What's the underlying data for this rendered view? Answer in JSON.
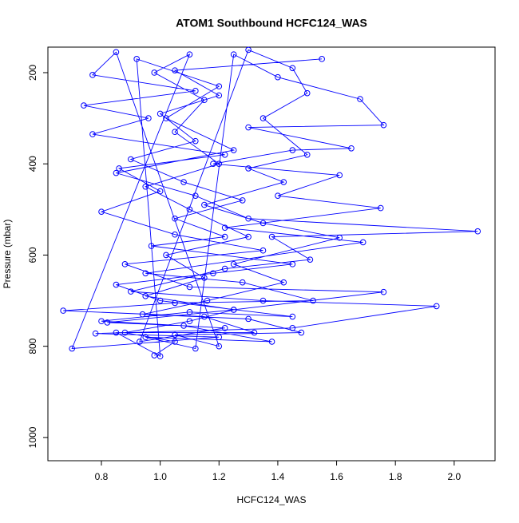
{
  "chart_data": {
    "type": "line",
    "title": "ATOM1 Southbound HCFC124_WAS",
    "x_label": "HCFC124_WAS",
    "y_label": "Pressure (mbar)",
    "color": "#0000ff",
    "markers": true,
    "x": [
      0.98,
      1.05,
      0.88,
      1.1,
      1.25,
      0.95,
      1.15,
      1.02,
      1.3,
      1.1,
      0.95,
      1.2,
      1.05,
      1.15,
      0.98,
      1.1,
      0.7,
      1.2,
      0.78,
      1.45,
      1.94,
      1.35,
      0.9,
      1.22,
      1.51,
      1.38,
      2.08,
      1.3,
      1.12,
      0.85,
      1.25,
      1.02,
      1.2,
      0.92,
      1.0,
      0.85,
      1.32,
      1.15,
      0.67,
      1.05,
      1.52,
      1.28,
      0.95,
      1.69,
      1.22,
      1.75,
      1.4,
      1.61,
      1.18,
      1.45,
      1.65,
      1.3,
      1.76,
      1.68,
      1.4,
      1.25,
      1.12,
      0.95,
      1.38,
      1.08,
      0.82,
      1.25,
      1.76,
      1.1,
      0.88,
      1.35,
      1.05,
      0.8,
      1.0,
      0.86,
      1.22,
      0.77,
      0.96,
      0.74,
      1.12,
      0.77,
      0.85,
      1.2,
      1.05,
      1.48,
      1.3,
      0.94,
      1.16,
      1.42,
      1.25,
      1.61,
      1.35,
      1.15,
      1.42,
      1.3,
      1.5,
      1.35,
      1.5,
      1.45,
      1.3,
      0.93,
      1.22,
      0.8,
      1.1,
      1.45,
      1.0,
      0.85,
      1.18,
      1.45,
      0.97,
      1.22,
      1.05,
      1.28,
      1.08,
      0.9,
      1.12,
      1.0,
      1.2,
      1.05,
      1.55
    ],
    "values": [
      820,
      790,
      770,
      745,
      720,
      690,
      650,
      600,
      560,
      500,
      450,
      400,
      330,
      260,
      200,
      160,
      805,
      780,
      772,
      760,
      712,
      700,
      680,
      630,
      610,
      560,
      548,
      520,
      470,
      420,
      370,
      300,
      230,
      170,
      822,
      770,
      770,
      735,
      722,
      705,
      700,
      660,
      640,
      572,
      540,
      497,
      470,
      425,
      400,
      370,
      366,
      320,
      315,
      258,
      210,
      160,
      805,
      780,
      790,
      755,
      748,
      720,
      681,
      670,
      620,
      590,
      555,
      505,
      460,
      410,
      380,
      335,
      300,
      272,
      240,
      205,
      155,
      800,
      775,
      770,
      740,
      730,
      700,
      660,
      620,
      562,
      530,
      490,
      440,
      410,
      380,
      300,
      245,
      190,
      150,
      790,
      760,
      745,
      725,
      735,
      700,
      665,
      640,
      620,
      580,
      560,
      520,
      480,
      440,
      390,
      350,
      290,
      250,
      195,
      170
    ],
    "xlim": [
      0.618,
      2.139
    ],
    "ylim": [
      1051,
      144
    ],
    "xticks": [
      0.8,
      {
        "value": 1,
        "label": "1.0"
      },
      1.2,
      1.4,
      1.6,
      1.8,
      {
        "value": 2,
        "label": "2.0"
      }
    ],
    "yticks": [
      200,
      400,
      600,
      800,
      1000
    ]
  }
}
